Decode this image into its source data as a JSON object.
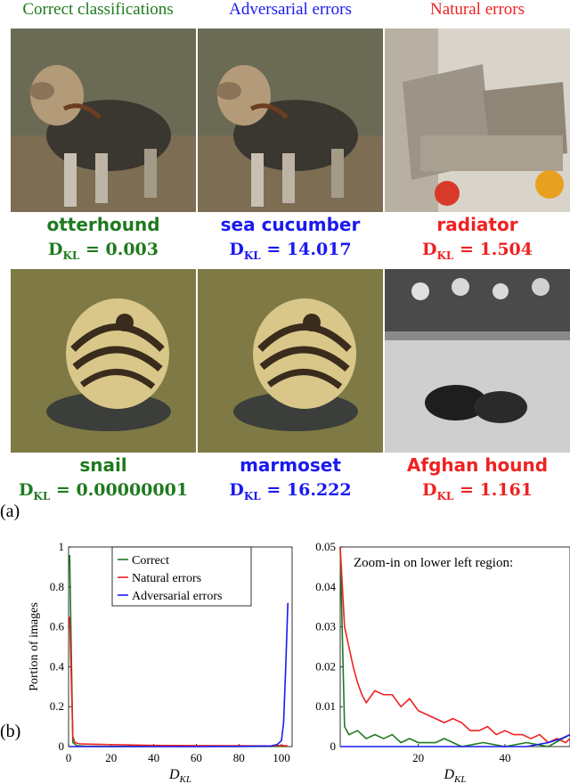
{
  "headers": {
    "correct": "Correct classifications",
    "adversarial": "Adversarial errors",
    "natural": "Natural errors"
  },
  "rows": [
    {
      "correct": {
        "label": "otterhound",
        "dkl": "0.003"
      },
      "adversarial": {
        "label": "sea cucumber",
        "dkl": "14.017"
      },
      "natural": {
        "label": "radiator",
        "dkl": "1.504"
      }
    },
    {
      "correct": {
        "label": "snail",
        "dkl": "0.00000001"
      },
      "adversarial": {
        "label": "marmoset",
        "dkl": "16.222"
      },
      "natural": {
        "label": "Afghan hound",
        "dkl": "1.161"
      }
    }
  ],
  "dkl_symbol": "D",
  "dkl_sub": "KL",
  "dkl_eq": " = ",
  "panel_letters": {
    "a": "(a)",
    "b": "(b)"
  },
  "colors": {
    "correct": "#1f7a1f",
    "adversarial": "#1a1af0",
    "natural": "#ee2222"
  },
  "chart_data": [
    {
      "type": "line",
      "xlabel": "D_KL",
      "ylabel": "Portion of images",
      "xlim": [
        0,
        105
      ],
      "ylim": [
        0,
        1
      ],
      "xticks": [
        0,
        20,
        40,
        60,
        80,
        100
      ],
      "yticks": [
        0,
        0.2,
        0.4,
        0.6,
        0.8,
        1
      ],
      "ytick_labels": [
        "0",
        "0.2",
        "0.4",
        "0.6",
        "0.8",
        "1"
      ],
      "legend_position": "top-center",
      "series": [
        {
          "name": "Correct",
          "color": "#1f7a1f",
          "x": [
            0.5,
            2,
            4,
            8,
            20,
            40,
            60,
            80,
            95,
            100,
            103
          ],
          "y": [
            0.96,
            0.02,
            0.004,
            0.002,
            0.001,
            0.001,
            0.001,
            0.001,
            0.001,
            0.001,
            0.001
          ]
        },
        {
          "name": "Natural errors",
          "color": "#ee2222",
          "x": [
            0.5,
            2,
            3,
            5,
            10,
            20,
            40,
            60,
            80,
            95,
            100,
            103
          ],
          "y": [
            0.65,
            0.05,
            0.02,
            0.014,
            0.012,
            0.01,
            0.006,
            0.005,
            0.004,
            0.003,
            0.006,
            0.003
          ]
        },
        {
          "name": "Adversarial errors",
          "color": "#1a1af0",
          "x": [
            0.5,
            20,
            40,
            60,
            80,
            95,
            98,
            100,
            101,
            102,
            103
          ],
          "y": [
            0.0,
            0.0,
            0.0,
            0.0,
            0.001,
            0.003,
            0.01,
            0.03,
            0.12,
            0.4,
            0.72
          ]
        }
      ]
    },
    {
      "type": "line",
      "annotation": "Zoom-in on lower left region:",
      "xlabel": "D_KL",
      "ylabel": "",
      "xlim": [
        2,
        55
      ],
      "ylim": [
        0,
        0.05
      ],
      "xticks": [
        20,
        40
      ],
      "yticks": [
        0,
        0.01,
        0.02,
        0.03,
        0.04,
        0.05
      ],
      "ytick_labels": [
        "0",
        "0.01",
        "0.02",
        "0.03",
        "0.04",
        "0.05"
      ],
      "series": [
        {
          "name": "Correct",
          "color": "#1f7a1f",
          "x": [
            2,
            3,
            4,
            6,
            8,
            10,
            12,
            14,
            16,
            18,
            20,
            22,
            24,
            26,
            28,
            30,
            35,
            40,
            45,
            50,
            55
          ],
          "y": [
            0.05,
            0.005,
            0.003,
            0.004,
            0.002,
            0.003,
            0.002,
            0.003,
            0.001,
            0.002,
            0.001,
            0.001,
            0.001,
            0.002,
            0.001,
            0.0,
            0.001,
            0.0,
            0.001,
            0.0,
            0.003
          ]
        },
        {
          "name": "Natural errors",
          "color": "#ee2222",
          "x": [
            2,
            3,
            4,
            5,
            6,
            7,
            8,
            10,
            12,
            14,
            16,
            18,
            20,
            22,
            24,
            26,
            28,
            30,
            32,
            34,
            36,
            38,
            40,
            42,
            44,
            46,
            48,
            50,
            52,
            54,
            55
          ],
          "y": [
            0.05,
            0.03,
            0.025,
            0.02,
            0.016,
            0.013,
            0.011,
            0.014,
            0.013,
            0.013,
            0.01,
            0.012,
            0.009,
            0.008,
            0.007,
            0.006,
            0.007,
            0.006,
            0.004,
            0.004,
            0.005,
            0.003,
            0.004,
            0.003,
            0.003,
            0.002,
            0.003,
            0.001,
            0.002,
            0.001,
            0.002
          ]
        },
        {
          "name": "Adversarial errors",
          "color": "#1a1af0",
          "x": [
            2,
            10,
            20,
            30,
            40,
            45,
            50,
            53,
            55
          ],
          "y": [
            0.0,
            0.0,
            0.0,
            0.0,
            0.0,
            0.0,
            0.001,
            0.002,
            0.003
          ]
        }
      ]
    }
  ]
}
